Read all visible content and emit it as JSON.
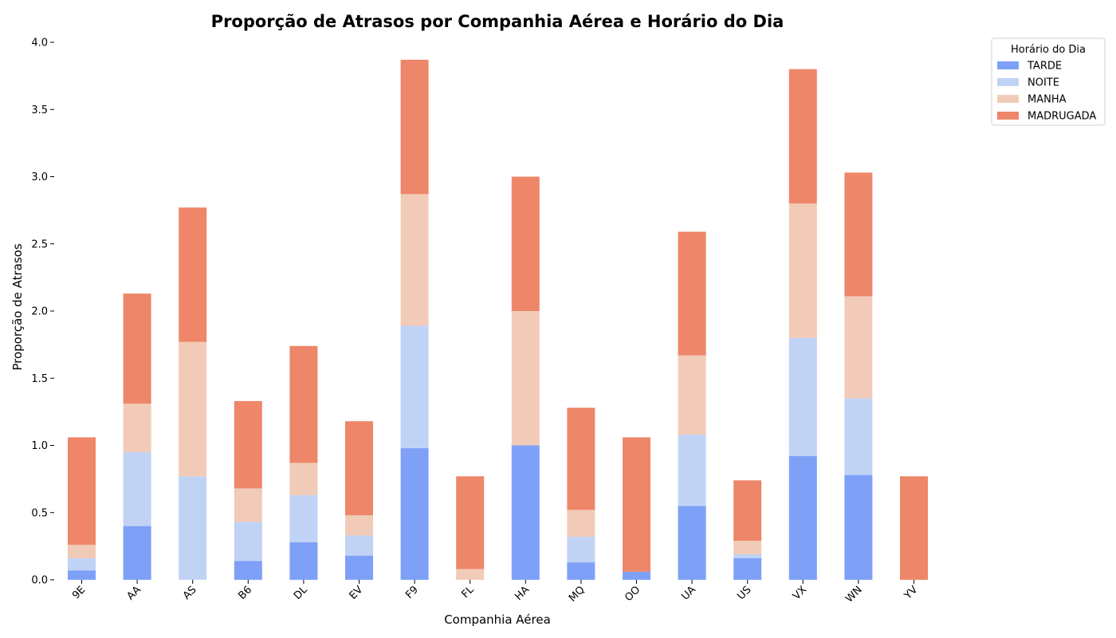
{
  "chart_data": {
    "type": "bar",
    "stacked": true,
    "title": "Proporção de Atrasos por Companhia Aérea e Horário do Dia",
    "xlabel": "Companhia Aérea",
    "ylabel": "Proporção de Atrasos",
    "ylim": [
      0,
      4.0
    ],
    "yticks": [
      "0.0",
      "0.5",
      "1.0",
      "1.5",
      "2.0",
      "2.5",
      "3.0",
      "3.5",
      "4.0"
    ],
    "grid": false,
    "legend": {
      "title": "Horário do Dia",
      "placement": "outside-top-right"
    },
    "categories": [
      "9E",
      "AA",
      "AS",
      "B6",
      "DL",
      "EV",
      "F9",
      "FL",
      "HA",
      "MQ",
      "OO",
      "UA",
      "US",
      "VX",
      "WN",
      "YV"
    ],
    "series": [
      {
        "name": "TARDE",
        "color": "#7ea0f7",
        "values": [
          0.07,
          0.4,
          0.0,
          0.14,
          0.28,
          0.18,
          0.98,
          0.0,
          1.0,
          0.13,
          0.06,
          0.55,
          0.16,
          0.92,
          0.78,
          0.0
        ]
      },
      {
        "name": "NOITE",
        "color": "#c0d3f5",
        "values": [
          0.09,
          0.55,
          0.77,
          0.29,
          0.35,
          0.15,
          0.91,
          0.0,
          0.0,
          0.19,
          0.0,
          0.53,
          0.03,
          0.88,
          0.57,
          0.0
        ]
      },
      {
        "name": "MANHA",
        "color": "#f2cbb8",
        "values": [
          0.1,
          0.36,
          1.0,
          0.25,
          0.24,
          0.15,
          0.98,
          0.08,
          1.0,
          0.2,
          0.0,
          0.59,
          0.1,
          1.0,
          0.76,
          0.0
        ]
      },
      {
        "name": "MADRUGADA",
        "color": "#ee8669",
        "values": [
          0.8,
          0.82,
          1.0,
          0.65,
          0.87,
          0.7,
          1.0,
          0.69,
          1.0,
          0.76,
          1.0,
          0.92,
          0.45,
          1.0,
          0.92,
          0.77
        ]
      }
    ]
  }
}
